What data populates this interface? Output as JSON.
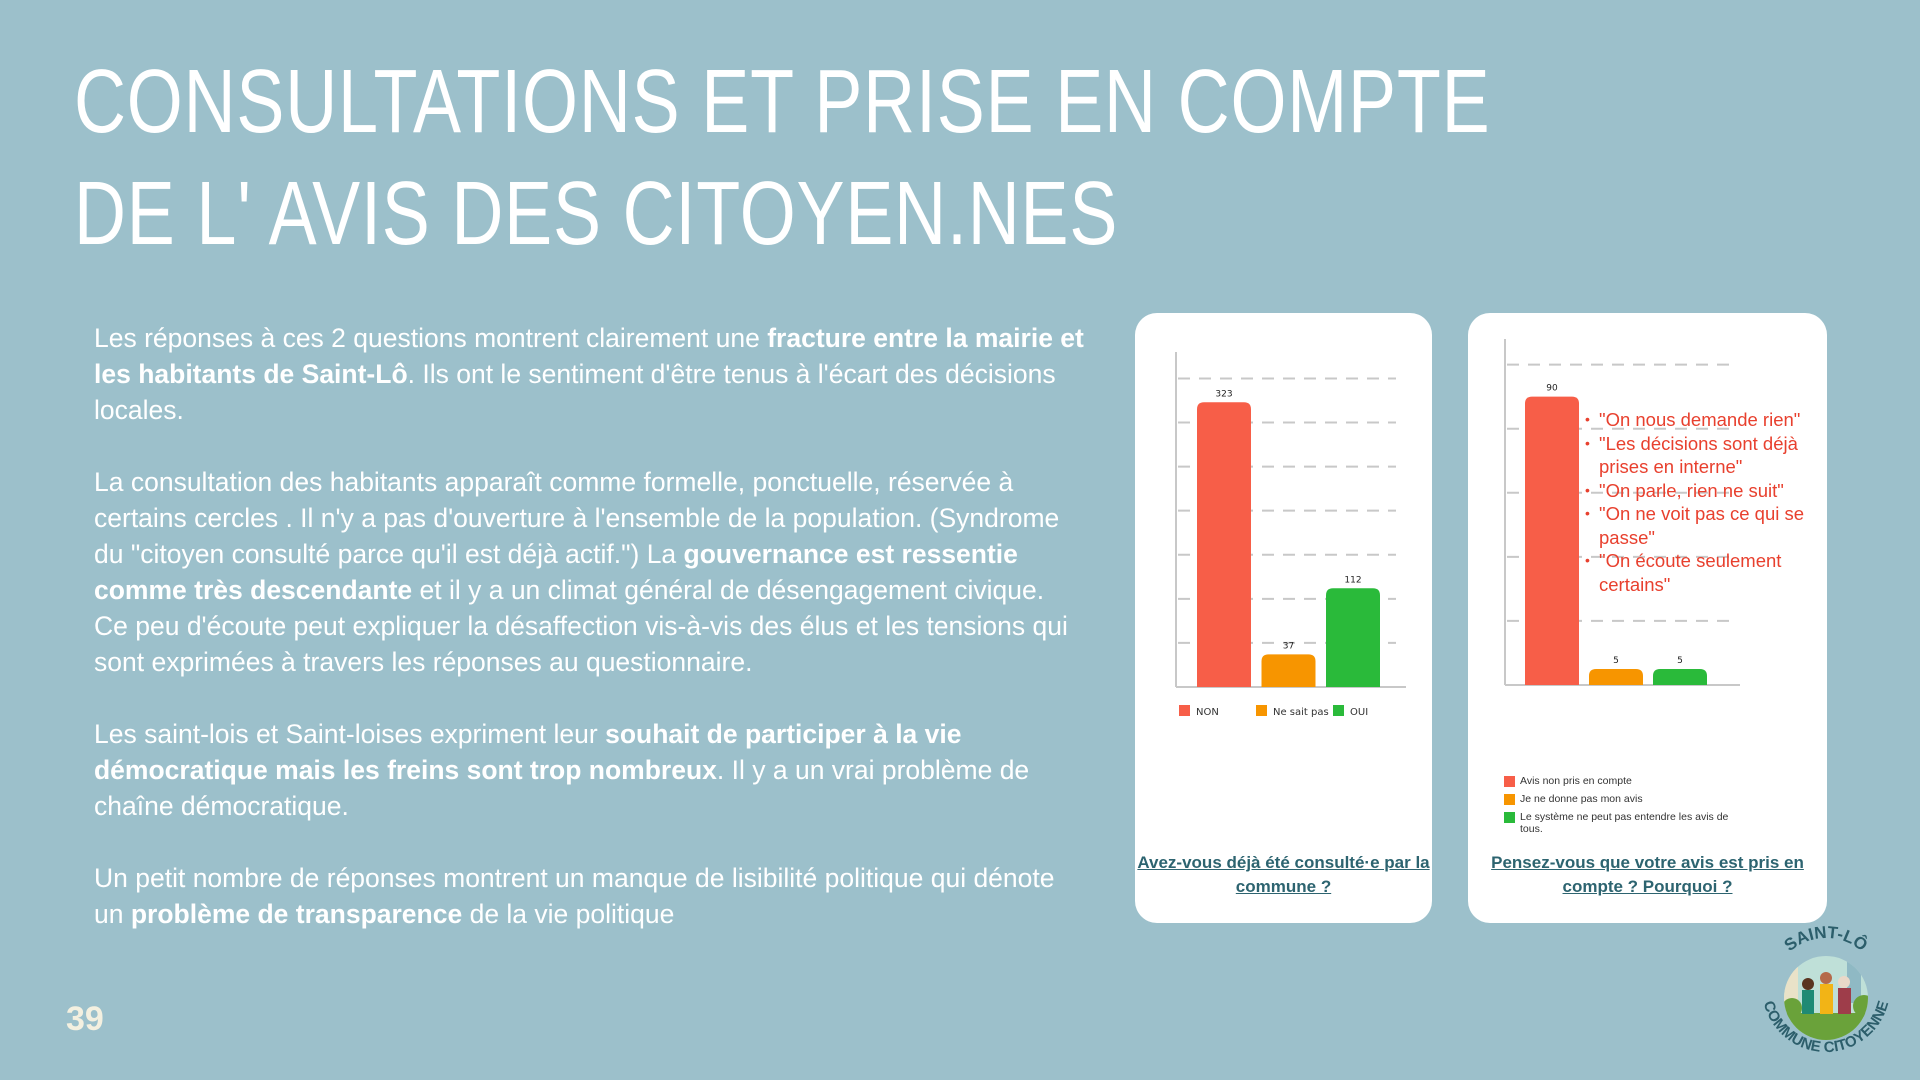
{
  "title": {
    "line1": "CONSULTATIONS ET PRISE EN COMPTE",
    "line2": "DE L' AVIS DES CITOYEN.NES"
  },
  "paragraphs": [
    [
      {
        "t": "Les réponses à ces 2 questions montrent clairement une "
      },
      {
        "t": "fracture entre la mairie et les habitants de Saint-Lô",
        "b": true
      },
      {
        "t": ". Ils ont le sentiment d'être tenus à l'écart des décisions locales."
      }
    ],
    [
      {
        "t": "La consultation des habitants apparaît comme formelle, ponctuelle, réservée à certains cercles . Il n'y a pas d'ouverture à l'ensemble de la population. (Syndrome du \"citoyen consulté parce qu'il est déjà actif.\") La "
      },
      {
        "t": "gouvernance est ressentie comme très descendante",
        "b": true
      },
      {
        "t": " et il y a un climat général de désengagement civique. Ce peu d'écoute peut expliquer la désaffection vis-à-vis des élus et les tensions qui sont exprimées à travers les réponses au questionnaire."
      }
    ],
    [
      {
        "t": "Les saint-lois et Saint-loises expriment leur "
      },
      {
        "t": "souhait de participer à la vie démocratique mais les freins sont trop nombreux",
        "b": true
      },
      {
        "t": ". Il y a un vrai problème de chaîne démocratique."
      }
    ],
    [
      {
        "t": "Un petit nombre de réponses montrent un manque de lisibilité politique qui dénote un "
      },
      {
        "t": "problème de transparence",
        "b": true
      },
      {
        "t": " de la vie politique"
      }
    ]
  ],
  "page_number": "39",
  "colors": {
    "red": "#f75e48",
    "orange": "#f79500",
    "green": "#2aba3a",
    "title_teal": "#2d6470",
    "quote_red": "#e8402e",
    "background": "#9cc0cb"
  },
  "chart_data": [
    {
      "type": "bar",
      "title": "Avez-vous déjà été consulté·e par la commune ?",
      "categories": [
        "NON",
        "Ne sait pas",
        "OUI"
      ],
      "values": [
        323,
        37,
        112
      ],
      "ylim": [
        0,
        380
      ],
      "grid_step": 50,
      "grid": true,
      "legend": "bottom"
    },
    {
      "type": "bar",
      "title": "Pensez-vous que votre avis est pris en compte ? Pourquoi ?",
      "categories": [
        "Avis non pris en compte",
        "Je ne donne pas mon avis",
        "Le système ne peut pas entendre les avis de tous."
      ],
      "values": [
        90,
        5,
        5
      ],
      "ylim": [
        0,
        108
      ],
      "grid_step": 20,
      "grid": true,
      "legend": "bottom",
      "annotations": [
        "\"On nous demande rien\"",
        "\"Les décisions sont déjà prises en interne\"",
        "\"On parle, rien ne suit\"",
        "\"On ne voit pas ce qui se passe\"",
        "\"On écoute seulement certains\""
      ]
    }
  ],
  "logo": {
    "top_text": "SAINT-LÔ",
    "bottom_text": "COMMUNE CITOYENNE"
  }
}
